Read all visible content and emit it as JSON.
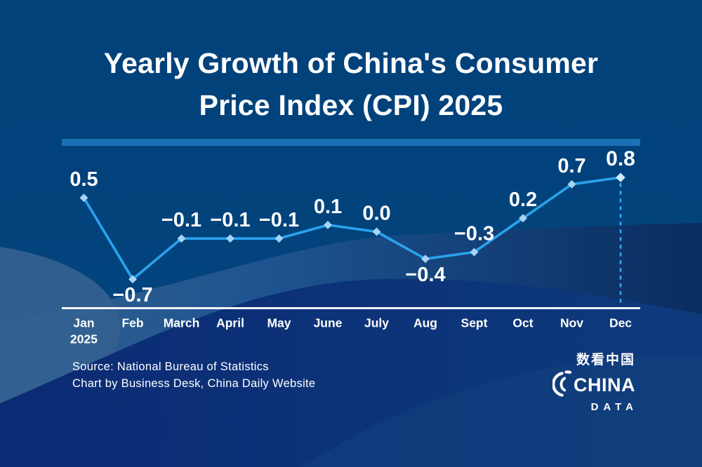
{
  "title": {
    "line1": "Yearly Growth of China's Consumer",
    "line2": "Price Index (CPI) 2025"
  },
  "chart_data": {
    "type": "line",
    "title": "Yearly Growth of China's Consumer Price Index (CPI) 2025",
    "categories": [
      "Jan",
      "Feb",
      "March",
      "April",
      "May",
      "June",
      "July",
      "Aug",
      "Sept",
      "Oct",
      "Nov",
      "Dec"
    ],
    "x_axis_sub_label": "2025",
    "values": [
      0.5,
      -0.7,
      -0.1,
      -0.1,
      -0.1,
      0.1,
      0.0,
      -0.4,
      -0.3,
      0.2,
      0.7,
      0.8
    ],
    "point_labels": [
      "0.5",
      "−0.7",
      "−0.1",
      "−0.1",
      "−0.1",
      "0.1",
      "0.0",
      "−0.4",
      "−0.3",
      "0.2",
      "0.7",
      "0.8"
    ],
    "highlight_index": 11,
    "unit": "percent",
    "xlabel": "",
    "ylabel": "",
    "ylim": [
      -0.9,
      1.0
    ],
    "grid": false,
    "legend": false
  },
  "footer": {
    "source": "Source: National Bureau of Statistics",
    "credit": "Chart by Business Desk, China Daily Website"
  },
  "logo": {
    "cn": "数看中国",
    "line1": "CHINA",
    "line2": "DATA"
  },
  "colors": {
    "background_top": "#02437B",
    "divider": "#1B70B6",
    "line": "#2BA2EC",
    "marker": "#A5D4F6",
    "marker_highlight": "#D2EAFB",
    "accent": "#2FA9EC",
    "month_highlight": "#3FA9F5",
    "axis": "#F4F8FB",
    "label": "#FFFFFF",
    "wave_navy": "#0C3076",
    "wave_gray": "#336090"
  }
}
